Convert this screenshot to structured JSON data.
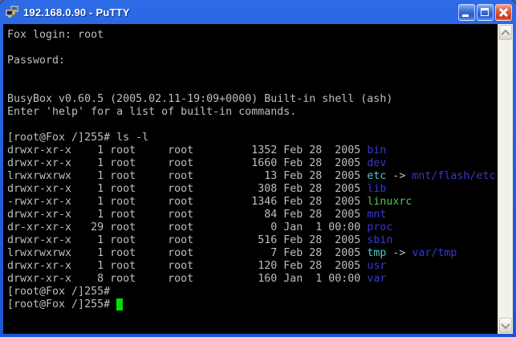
{
  "window": {
    "title": "192.168.0.90 - PuTTY",
    "icons": {
      "app": "putty-terminals-icon",
      "minimize": "minimize-icon",
      "maximize": "maximize-icon",
      "close": "close-icon",
      "scroll_up": "chevron-up-icon",
      "scroll_down": "chevron-down-icon"
    }
  },
  "terminal": {
    "prompt": "[root@Fox /]255#",
    "colors": {
      "background": "#000000",
      "foreground": "#bebebe",
      "directory": "#3737d2",
      "symlink": "#52c8c8",
      "executable": "#52c452",
      "cursor": "#00e000"
    },
    "lines": [
      [
        [
          "fg",
          "Fox login: root"
        ]
      ],
      [],
      [
        [
          "fg",
          "Password:"
        ]
      ],
      [],
      [],
      [
        [
          "fg",
          "BusyBox v0.60.5 (2005.02.11-19:09+0000) Built-in shell (ash)"
        ]
      ],
      [
        [
          "fg",
          "Enter 'help' for a list of built-in commands."
        ]
      ],
      [],
      [
        [
          "fg",
          "[root@Fox /]255# ls -l"
        ]
      ],
      [
        [
          "fg",
          "drwxr-xr-x    1 root     root         1352 Feb 28  2005 "
        ],
        [
          "dir",
          "bin"
        ]
      ],
      [
        [
          "fg",
          "drwxr-xr-x    1 root     root         1660 Feb 28  2005 "
        ],
        [
          "dir",
          "dev"
        ]
      ],
      [
        [
          "fg",
          "lrwxrwxrwx    1 root     root           13 Feb 28  2005 "
        ],
        [
          "link",
          "etc"
        ],
        [
          "fg",
          " -> "
        ],
        [
          "dir",
          "mnt/flash/etc"
        ]
      ],
      [
        [
          "fg",
          "drwxr-xr-x    1 root     root          308 Feb 28  2005 "
        ],
        [
          "dir",
          "lib"
        ]
      ],
      [
        [
          "fg",
          "-rwxr-xr-x    1 root     root         1346 Feb 28  2005 "
        ],
        [
          "exec",
          "linuxrc"
        ]
      ],
      [
        [
          "fg",
          "drwxr-xr-x    1 root     root           84 Feb 28  2005 "
        ],
        [
          "dir",
          "mnt"
        ]
      ],
      [
        [
          "fg",
          "dr-xr-xr-x   29 root     root            0 Jan  1 00:00 "
        ],
        [
          "dir",
          "proc"
        ]
      ],
      [
        [
          "fg",
          "drwxr-xr-x    1 root     root          516 Feb 28  2005 "
        ],
        [
          "dir",
          "sbin"
        ]
      ],
      [
        [
          "fg",
          "lrwxrwxrwx    1 root     root            7 Feb 28  2005 "
        ],
        [
          "link",
          "tmp"
        ],
        [
          "fg",
          " -> "
        ],
        [
          "dir",
          "var/tmp"
        ]
      ],
      [
        [
          "fg",
          "drwxr-xr-x    1 root     root          120 Feb 28  2005 "
        ],
        [
          "dir",
          "usr"
        ]
      ],
      [
        [
          "fg",
          "drwxr-xr-x    8 root     root          160 Jan  1 00:00 "
        ],
        [
          "dir",
          "var"
        ]
      ],
      [
        [
          "fg",
          "[root@Fox /]255#"
        ]
      ],
      [
        [
          "fg",
          "[root@Fox /]255# "
        ],
        [
          "cursor",
          " "
        ]
      ]
    ]
  }
}
